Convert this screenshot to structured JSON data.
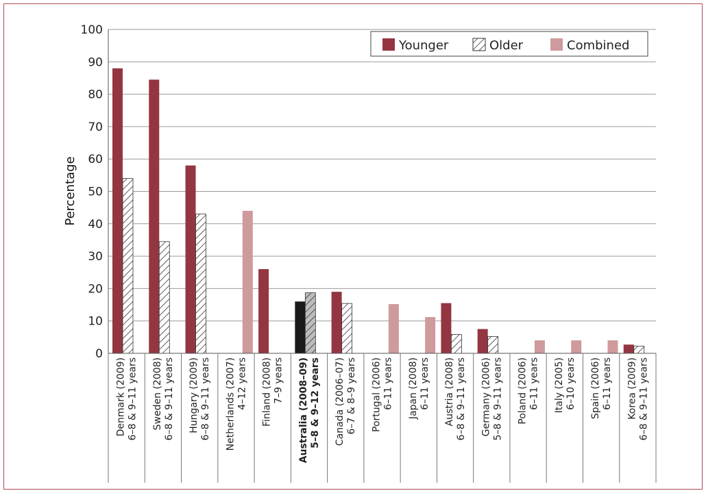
{
  "chart_data": {
    "type": "bar",
    "title": "",
    "xlabel": "",
    "ylabel": "Percentage",
    "ylim": [
      0,
      100
    ],
    "yticks": [
      0,
      10,
      20,
      30,
      40,
      50,
      60,
      70,
      80,
      90,
      100
    ],
    "grid": true,
    "legend_position": "top-right",
    "categories": [
      {
        "line1": "Denmark (2009)",
        "line2": "6–8 & 9–11 years",
        "highlight": false
      },
      {
        "line1": "Sweden (2008)",
        "line2": "6–8 & 9–11 years",
        "highlight": false
      },
      {
        "line1": "Hungary (2009)",
        "line2": "6–8 & 9–11 years",
        "highlight": false
      },
      {
        "line1": "Netherlands (2007)",
        "line2": "4–12 years",
        "highlight": false
      },
      {
        "line1": "Finland (2008)",
        "line2": "7–9 years",
        "highlight": false
      },
      {
        "line1": "Australia (2008–09)",
        "line2": "5–8 & 9–12 years",
        "highlight": true
      },
      {
        "line1": "Canada (2006–07)",
        "line2": "6–7 & 8–9 years",
        "highlight": false
      },
      {
        "line1": "Portugal (2006)",
        "line2": "6–11 years",
        "highlight": false
      },
      {
        "line1": "Japan (2008)",
        "line2": "6–11 years",
        "highlight": false
      },
      {
        "line1": "Austria (2008)",
        "line2": "6–8 & 9–11 years",
        "highlight": false
      },
      {
        "line1": "Germany (2006)",
        "line2": "5–8 & 9–11 years",
        "highlight": false
      },
      {
        "line1": "Poland (2006)",
        "line2": "6–11 years",
        "highlight": false
      },
      {
        "line1": "Italy (2005)",
        "line2": "6–10 years",
        "highlight": false
      },
      {
        "line1": "Spain (2006)",
        "line2": "6–11 years",
        "highlight": false
      },
      {
        "line1": "Korea (2009)",
        "line2": "6–8 & 9–11 years",
        "highlight": false
      }
    ],
    "series": [
      {
        "name": "Younger",
        "color": "#943642",
        "highlight_color": "#1a1a1a",
        "pattern": "solid",
        "values": [
          88,
          84.5,
          58,
          null,
          26,
          16,
          19,
          null,
          null,
          15.5,
          7.5,
          null,
          null,
          null,
          2.7
        ]
      },
      {
        "name": "Older",
        "color": "#ffffff",
        "highlight_color": "#bdbdbd",
        "pattern": "hatch",
        "values": [
          54,
          34.5,
          43,
          null,
          null,
          18.7,
          15.4,
          null,
          null,
          5.8,
          5.2,
          null,
          null,
          null,
          2.2
        ]
      },
      {
        "name": "Combined",
        "color": "#cf9a9c",
        "pattern": "solid",
        "values": [
          null,
          null,
          null,
          44,
          null,
          null,
          null,
          15.2,
          11.2,
          null,
          null,
          4,
          4,
          4,
          null
        ]
      }
    ]
  }
}
